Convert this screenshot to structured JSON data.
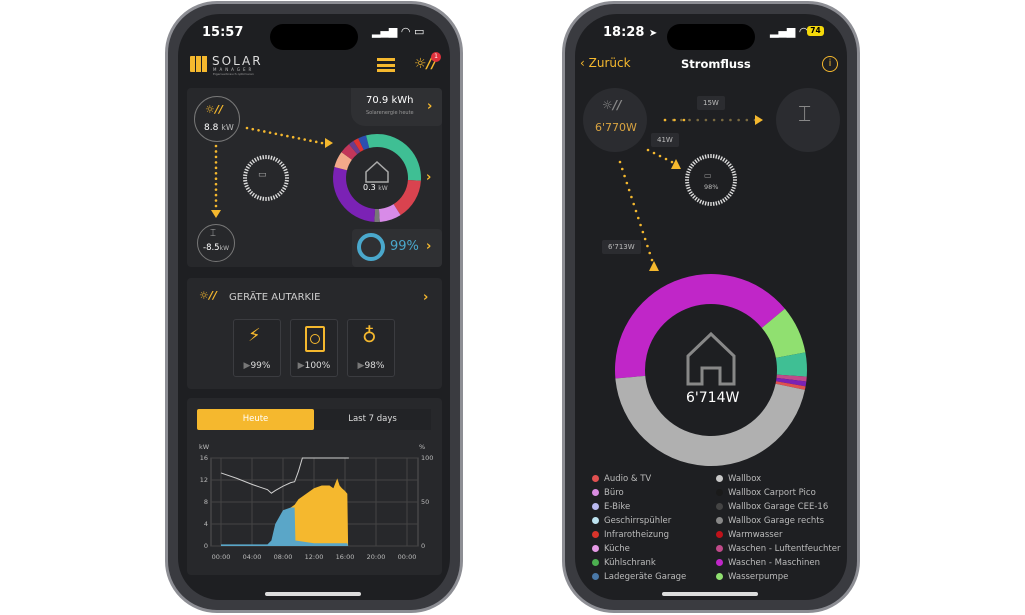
{
  "left_phone": {
    "status_time": "15:57",
    "logo": {
      "word": "SOLAR",
      "sub": "MANAGER",
      "tagline": "Eigenverbrauch optimieren"
    },
    "notification_count": "1",
    "solar_energy": {
      "value": "70.9 kWh",
      "label": "Solarenergie heute"
    },
    "pv": {
      "value": "8.8",
      "unit": "kW"
    },
    "grid": {
      "value": "-8.5",
      "unit": "kW"
    },
    "home": {
      "value": "0.3",
      "unit": "kW"
    },
    "autarky": "99%",
    "home_donut": [
      {
        "color": "#3fbf94",
        "share": 26
      },
      {
        "color": "#d9434f",
        "share": 15
      },
      {
        "color": "#d88be8",
        "share": 8
      },
      {
        "color": "#777777",
        "share": 2
      },
      {
        "color": "#7b22b5",
        "share": 28
      },
      {
        "color": "#f2a98a",
        "share": 6
      },
      {
        "color": "#c2365a",
        "share": 4
      },
      {
        "color": "#6a3d8c",
        "share": 2
      },
      {
        "color": "#d33",
        "share": 2
      },
      {
        "color": "#2c4fb0",
        "share": 3
      },
      {
        "color": "#3fbf94",
        "share": 4
      }
    ],
    "devices": {
      "title": "GERÄTE AUTARKIE",
      "items": [
        {
          "icon": "ev-charger-icon",
          "value": "99%"
        },
        {
          "icon": "washing-machine-icon",
          "value": "100%"
        },
        {
          "icon": "lightbulb-icon",
          "value": "98%"
        }
      ]
    },
    "chart_tabs": [
      "Heute",
      "Last 7 days"
    ],
    "active_tab": "Heute"
  },
  "chart_data": {
    "type": "area",
    "xlabel": "",
    "ylabel": "kW",
    "y2label": "%",
    "x_ticks": [
      "00:00",
      "04:00",
      "08:00",
      "12:00",
      "16:00",
      "20:00",
      "00:00"
    ],
    "y_ticks": [
      "0",
      "4",
      "8",
      "12",
      "16"
    ],
    "y2_ticks": [
      "0",
      "50",
      "100"
    ],
    "xlim": [
      0,
      24
    ],
    "ylim": [
      0,
      16
    ],
    "y2lim": [
      0,
      100
    ],
    "grid": true,
    "colors": {
      "solar": "#f5b82e",
      "consumption": "#5aa6c8",
      "battery": "#cfcfcf"
    },
    "series": [
      {
        "key": "solar",
        "axis": "kW",
        "x": [
          0,
          6,
          6.5,
          7,
          8,
          9,
          9.5,
          10,
          11,
          12,
          13,
          14,
          14.5,
          15,
          15.3,
          15.6,
          16,
          16.3,
          16.4
        ],
        "y": [
          0,
          0,
          0.5,
          3,
          6,
          7,
          7.5,
          8.5,
          9.5,
          10.5,
          11,
          11,
          10.5,
          12.3,
          11,
          10.5,
          10,
          9.5,
          0
        ]
      },
      {
        "key": "consumption",
        "axis": "kW",
        "x": [
          0,
          6,
          6.5,
          7,
          8,
          9,
          9.5,
          9.6,
          12,
          16.3,
          16.4
        ],
        "y": [
          0.3,
          0.3,
          1,
          4,
          6.5,
          7,
          7,
          1,
          0.5,
          0.5,
          0
        ]
      },
      {
        "key": "battery",
        "axis": "%",
        "x": [
          0,
          2,
          4,
          5,
          6,
          6.5,
          7,
          8,
          9,
          9.5,
          10,
          10.5,
          16.5
        ],
        "y": [
          83,
          77,
          70,
          67,
          64,
          60,
          63,
          68,
          72,
          73,
          85,
          100,
          100
        ]
      }
    ]
  },
  "right_phone": {
    "status_time": "18:28",
    "battery_level": "74",
    "back_label": "Zurück",
    "title": "Stromfluss",
    "pv": "6'770W",
    "flow_to_grid": "15W",
    "flow_to_battery": "41W",
    "flow_to_home": "6'713W",
    "battery": "98%",
    "home": "6'714W",
    "home_donut": [
      {
        "color": "#c026c8",
        "share": 40
      },
      {
        "color": "#90e070",
        "share": 8
      },
      {
        "color": "#3fbf94",
        "share": 4
      },
      {
        "color": "#c04a8a",
        "share": 0.8
      },
      {
        "color": "#7b22b5",
        "share": 0.8
      },
      {
        "color": "#e05050",
        "share": 0.6
      },
      {
        "color": "#b0b0b0",
        "share": 44.8
      }
    ],
    "legend": [
      {
        "label": "Audio & TV",
        "color": "#e05050"
      },
      {
        "label": "Büro",
        "color": "#d98ce0"
      },
      {
        "label": "E-Bike",
        "color": "#b9b9f0"
      },
      {
        "label": "Geschirrspühler",
        "color": "#bde3f0"
      },
      {
        "label": "Infrarotheizung",
        "color": "#d9342b"
      },
      {
        "label": "Küche",
        "color": "#e59ae5"
      },
      {
        "label": "Kühlschrank",
        "color": "#4caf50"
      },
      {
        "label": "Ladegeräte Garage",
        "color": "#4a78a8"
      },
      {
        "label": "Wallbox",
        "color": "#c8c8c8"
      },
      {
        "label": "Wallbox Carport Pico",
        "color": "#1a1a1a"
      },
      {
        "label": "Wallbox Garage CEE-16",
        "color": "#444444"
      },
      {
        "label": "Wallbox Garage rechts",
        "color": "#888888"
      },
      {
        "label": "Warmwasser",
        "color": "#c0121a"
      },
      {
        "label": "Waschen - Luftentfeuchter",
        "color": "#c04a8a"
      },
      {
        "label": "Waschen - Maschinen",
        "color": "#c026c8"
      },
      {
        "label": "Wasserpumpe",
        "color": "#90e070"
      }
    ]
  }
}
